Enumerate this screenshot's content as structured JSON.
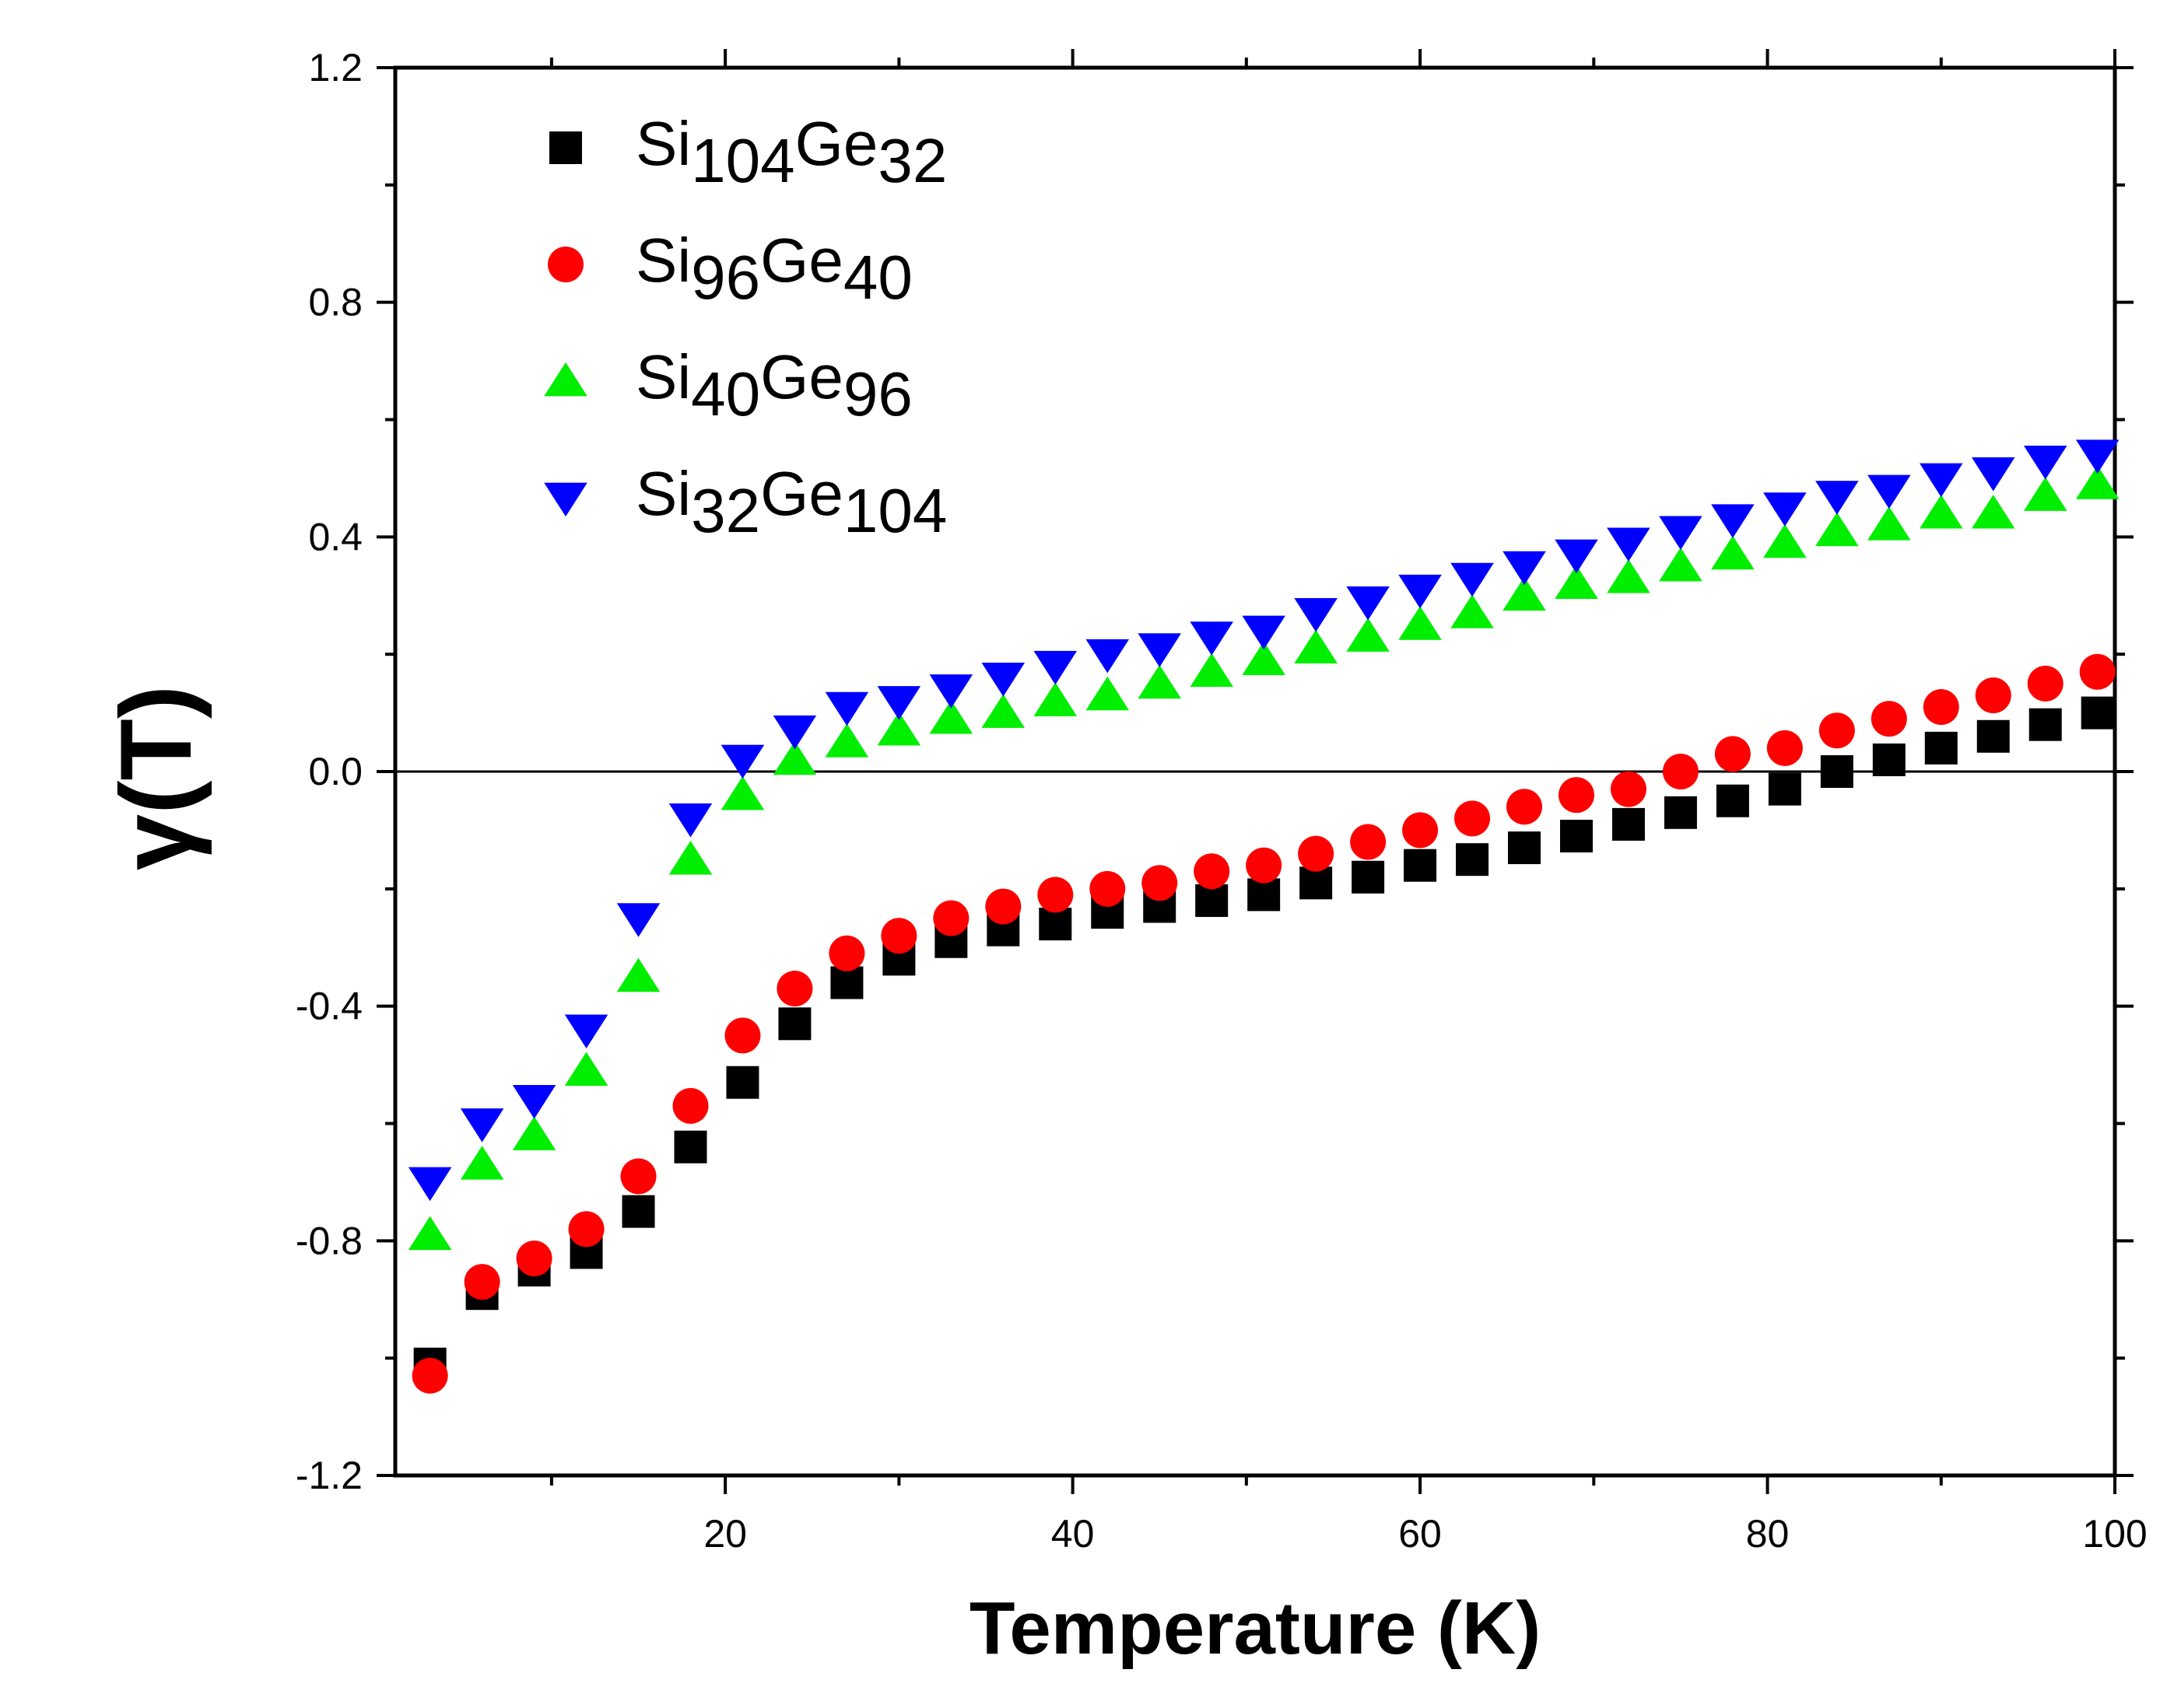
{
  "chart_data": {
    "type": "scatter",
    "title": "",
    "xlabel": "Temperature (K)",
    "ylabel": "γ(T)",
    "xlim": [
      1,
      100
    ],
    "ylim": [
      -1.2,
      1.2
    ],
    "x_ticks": [
      20,
      40,
      60,
      80,
      100
    ],
    "y_ticks": [
      -1.2,
      -0.8,
      -0.4,
      0.0,
      0.4,
      0.8,
      1.2
    ],
    "y_tick_labels": [
      "-1.2",
      "-0.8",
      "-0.4",
      "0.0",
      "0.4",
      "0.8",
      "1.2"
    ],
    "grid": false,
    "zero_line": 0.0,
    "legend_position": "top-left",
    "x": [
      3,
      6,
      9,
      12,
      15,
      18,
      21,
      24,
      27,
      30,
      33,
      36,
      39,
      42,
      45,
      48,
      51,
      54,
      57,
      60,
      63,
      66,
      69,
      72,
      75,
      78,
      81,
      84,
      87,
      90,
      93,
      96,
      99
    ],
    "series": [
      {
        "name": "Si104Ge32",
        "label_parts": [
          {
            "text": "Si",
            "sub": false
          },
          {
            "text": "104",
            "sub": true
          },
          {
            "text": "Ge",
            "sub": false
          },
          {
            "text": "32",
            "sub": true
          }
        ],
        "marker": "square",
        "color": "#000000",
        "values": [
          -1.01,
          -0.89,
          -0.85,
          -0.82,
          -0.75,
          -0.64,
          -0.53,
          -0.43,
          -0.36,
          -0.32,
          -0.29,
          -0.27,
          -0.26,
          -0.24,
          -0.23,
          -0.22,
          -0.21,
          -0.19,
          -0.18,
          -0.16,
          -0.15,
          -0.13,
          -0.11,
          -0.09,
          -0.07,
          -0.05,
          -0.03,
          0.0,
          0.02,
          0.04,
          0.06,
          0.08,
          0.1
        ]
      },
      {
        "name": "Si96Ge40",
        "label_parts": [
          {
            "text": "Si",
            "sub": false
          },
          {
            "text": "96",
            "sub": true
          },
          {
            "text": "Ge",
            "sub": false
          },
          {
            "text": "40",
            "sub": true
          }
        ],
        "marker": "circle",
        "color": "#ff0000",
        "values": [
          -1.03,
          -0.87,
          -0.83,
          -0.78,
          -0.69,
          -0.57,
          -0.45,
          -0.37,
          -0.31,
          -0.28,
          -0.25,
          -0.23,
          -0.21,
          -0.2,
          -0.19,
          -0.17,
          -0.16,
          -0.14,
          -0.12,
          -0.1,
          -0.08,
          -0.06,
          -0.04,
          -0.03,
          0.0,
          0.03,
          0.04,
          0.07,
          0.09,
          0.11,
          0.13,
          0.15,
          0.17
        ]
      },
      {
        "name": "Si40Ge96",
        "label_parts": [
          {
            "text": "Si",
            "sub": false
          },
          {
            "text": "40",
            "sub": true
          },
          {
            "text": "Ge",
            "sub": false
          },
          {
            "text": "96",
            "sub": true
          }
        ],
        "marker": "triangle-up",
        "color": "#00ee00",
        "values": [
          -0.79,
          -0.67,
          -0.62,
          -0.51,
          -0.35,
          -0.15,
          -0.04,
          0.02,
          0.05,
          0.07,
          0.09,
          0.1,
          0.12,
          0.13,
          0.15,
          0.17,
          0.19,
          0.21,
          0.23,
          0.25,
          0.27,
          0.3,
          0.32,
          0.33,
          0.35,
          0.37,
          0.39,
          0.41,
          0.42,
          0.44,
          0.44,
          0.47,
          0.49
        ]
      },
      {
        "name": "Si32Ge104",
        "label_parts": [
          {
            "text": "Si",
            "sub": false
          },
          {
            "text": "32",
            "sub": true
          },
          {
            "text": "Ge",
            "sub": false
          },
          {
            "text": "104",
            "sub": true
          }
        ],
        "marker": "triangle-down",
        "color": "#0000ff",
        "values": [
          -0.7,
          -0.6,
          -0.56,
          -0.44,
          -0.25,
          -0.08,
          0.02,
          0.07,
          0.11,
          0.12,
          0.14,
          0.16,
          0.18,
          0.2,
          0.21,
          0.23,
          0.24,
          0.27,
          0.29,
          0.31,
          0.33,
          0.35,
          0.37,
          0.39,
          0.41,
          0.43,
          0.45,
          0.47,
          0.48,
          0.5,
          0.51,
          0.53,
          0.54
        ]
      }
    ]
  }
}
